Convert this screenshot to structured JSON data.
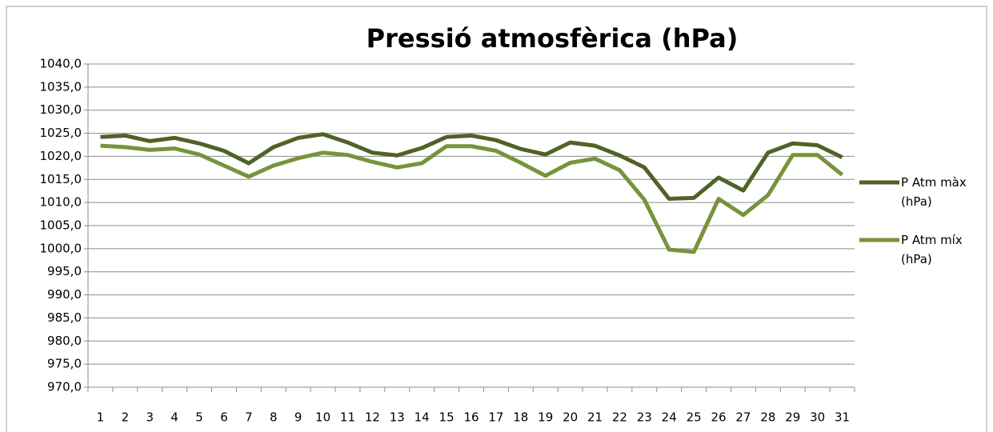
{
  "chart_data": {
    "type": "line",
    "title": "Pressió atmosfèrica (hPa)",
    "categories": [
      "1",
      "2",
      "3",
      "4",
      "5",
      "6",
      "7",
      "8",
      "9",
      "10",
      "11",
      "12",
      "13",
      "14",
      "15",
      "16",
      "17",
      "18",
      "19",
      "20",
      "21",
      "22",
      "23",
      "24",
      "25",
      "26",
      "27",
      "28",
      "29",
      "30",
      "31"
    ],
    "series": [
      {
        "name": "P Atm màx (hPa)",
        "color": "#4f6228",
        "values": [
          1024.2,
          1024.5,
          1023.3,
          1024.0,
          1022.8,
          1021.2,
          1018.5,
          1022.0,
          1024.0,
          1024.8,
          1023.0,
          1020.8,
          1020.2,
          1021.8,
          1024.2,
          1024.5,
          1023.5,
          1021.6,
          1020.4,
          1023.0,
          1022.3,
          1020.2,
          1017.6,
          1010.8,
          1011.0,
          1015.4,
          1012.6,
          1020.8,
          1022.8,
          1022.4,
          1019.8
        ]
      },
      {
        "name": "P Atm míx (hPa)",
        "color": "#77933c",
        "values": [
          1022.3,
          1022.0,
          1021.4,
          1021.7,
          1020.4,
          1018.0,
          1015.6,
          1018.0,
          1019.6,
          1020.8,
          1020.3,
          1018.8,
          1017.6,
          1018.5,
          1022.2,
          1022.2,
          1021.2,
          1018.6,
          1015.8,
          1018.6,
          1019.5,
          1017.0,
          1010.6,
          999.8,
          999.3,
          1010.8,
          1007.3,
          1011.6,
          1020.3,
          1020.3,
          1016.0
        ]
      }
    ],
    "ylim": [
      970,
      1040
    ],
    "yticks": [
      {
        "value": 970,
        "label": "970,0"
      },
      {
        "value": 975,
        "label": "975,0"
      },
      {
        "value": 980,
        "label": "980,0"
      },
      {
        "value": 985,
        "label": "985,0"
      },
      {
        "value": 990,
        "label": "990,0"
      },
      {
        "value": 995,
        "label": "995,0"
      },
      {
        "value": 1000,
        "label": "1000,0"
      },
      {
        "value": 1005,
        "label": "1005,0"
      },
      {
        "value": 1010,
        "label": "1010,0"
      },
      {
        "value": 1015,
        "label": "1015,0"
      },
      {
        "value": 1020,
        "label": "1020,0"
      },
      {
        "value": 1025,
        "label": "1025,0"
      },
      {
        "value": 1030,
        "label": "1030,0"
      },
      {
        "value": 1035,
        "label": "1035,0"
      },
      {
        "value": 1040,
        "label": "1040,0"
      }
    ],
    "grid": true,
    "legend": "right"
  }
}
